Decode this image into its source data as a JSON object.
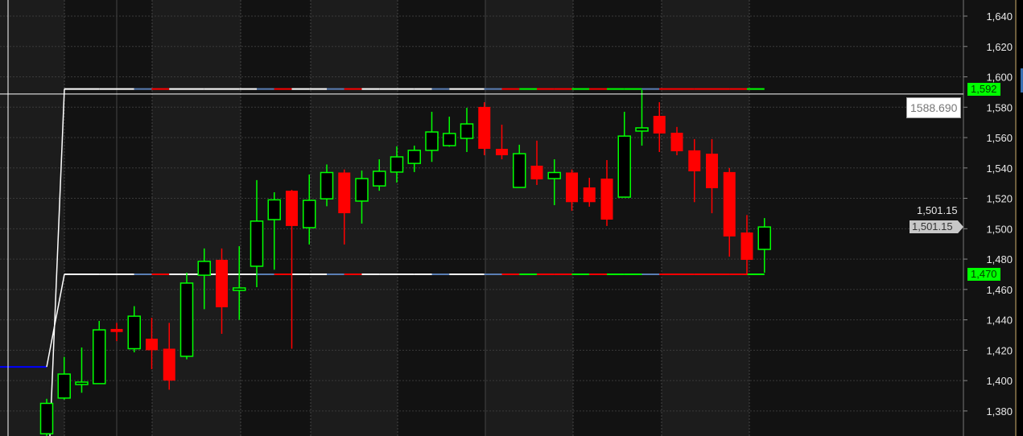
{
  "chart_data": {
    "type": "candlestick",
    "title": "",
    "xlabel": "",
    "ylabel": "",
    "ylim": [
      1370,
      1652
    ],
    "y_ticks": [
      "1,380",
      "1,400",
      "1,420",
      "1,440",
      "1,460",
      "1,480",
      "1,500",
      "1,520",
      "1,540",
      "1,560",
      "1,580",
      "1,600",
      "1,620",
      "1,640"
    ],
    "grid": true,
    "candles": {
      "open": [
        1365,
        1388.5,
        1398,
        1398,
        1434,
        1421,
        1427.6,
        1421,
        1416,
        1469.4,
        1479.5,
        1459.5,
        1475.3,
        1506,
        1525,
        1500.7,
        1519.7,
        1537,
        1518.2,
        1528.2,
        1537.3,
        1543,
        1551.6,
        1554.7,
        1559.5,
        1580.2,
        1552.6,
        1527.2,
        1541.5,
        1533,
        1537,
        1527.2,
        1533,
        1520.8,
        1564.3,
        1574.3,
        1563.2,
        1551.6,
        1549.4,
        1537.3,
        1497.5,
        1486.4
      ],
      "high": [
        1388,
        1415.6,
        1421.8,
        1439.3,
        1438,
        1449,
        1441.4,
        1438,
        1471,
        1487,
        1487,
        1488.5,
        1532,
        1524,
        1525.6,
        1535.7,
        1542.3,
        1539,
        1538.3,
        1545.7,
        1554.2,
        1554.7,
        1577,
        1573.8,
        1579.6,
        1583.3,
        1568.5,
        1555.3,
        1558,
        1545.7,
        1539,
        1533.5,
        1545.2,
        1577,
        1591.3,
        1583.3,
        1567,
        1559,
        1559,
        1540,
        1509,
        1507
      ],
      "low": [
        1358,
        1387.4,
        1392,
        1398,
        1426,
        1418.6,
        1407.5,
        1394,
        1414,
        1447,
        1430.8,
        1440,
        1461.5,
        1473,
        1421,
        1489.6,
        1514.8,
        1489.6,
        1503.4,
        1525,
        1530.4,
        1537.3,
        1544,
        1554,
        1550.5,
        1548.4,
        1545.7,
        1527.2,
        1528.8,
        1515.5,
        1511.8,
        1514.5,
        1501.8,
        1520.8,
        1554.7,
        1550.5,
        1548.4,
        1517.5,
        1510.2,
        1481.6,
        1469.5,
        1471
      ],
      "close": [
        1385,
        1404.3,
        1399,
        1433.4,
        1432,
        1442.4,
        1420,
        1400,
        1464.2,
        1478.5,
        1448.3,
        1461,
        1505,
        1519,
        1501.8,
        1518.7,
        1537,
        1510.2,
        1533,
        1537.8,
        1547.3,
        1551.6,
        1563.7,
        1562.7,
        1569,
        1552.6,
        1548.4,
        1549.4,
        1532.5,
        1537,
        1517.5,
        1517.5,
        1506,
        1561,
        1566.4,
        1562.7,
        1551,
        1537.8,
        1526.7,
        1494.9,
        1479.5,
        1501.15
      ]
    },
    "levels": {
      "upper": {
        "value": 1592,
        "label": "1,592"
      },
      "lower": {
        "value": 1470,
        "label": "1,470"
      },
      "prior": 1409,
      "segment_colors": [
        "white",
        "white",
        "white",
        "white",
        "blue",
        "red",
        "white",
        "white",
        "white",
        "white",
        "white",
        "blue",
        "red",
        "white",
        "white",
        "blue",
        "red",
        "white",
        "white",
        "white",
        "white",
        "blue",
        "white",
        "white",
        "blue",
        "red",
        "green",
        "red",
        "red",
        "green",
        "red",
        "green",
        "green",
        "blue",
        "red",
        "red",
        "red",
        "red",
        "red",
        "green"
      ]
    },
    "crosshair": {
      "price": 1588.69,
      "label": "1588.690"
    },
    "last_price": {
      "value": 1501.15,
      "label": "1,501.15",
      "tag": "1,501.15"
    },
    "colors": {
      "up": "#00ff00",
      "down": "#ff0000",
      "blue": "#5b7fb5",
      "prior": "#0000ff",
      "background": "#121212",
      "band": "#1c1c1c"
    }
  }
}
